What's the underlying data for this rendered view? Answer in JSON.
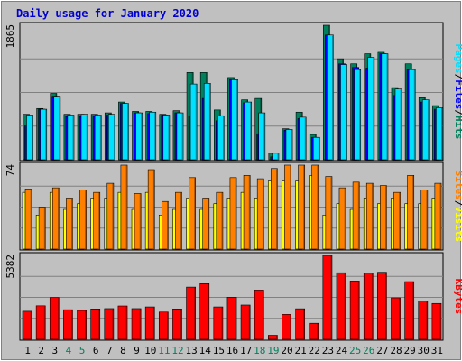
{
  "title": "Daily usage for January 2020",
  "colors": {
    "title": "#0000d0",
    "hits": "#00805c",
    "files": "#0000ff",
    "pages": "#00e0ff",
    "visits": "#ffff00",
    "sites": "#ff8000",
    "kbytes": "#ff0000",
    "weekday": "#000000",
    "weekend": "#00805c",
    "slash": "#000000"
  },
  "chart_data": [
    {
      "type": "bar",
      "panel": "top",
      "max_label": "1865",
      "ylim": [
        0,
        1865
      ],
      "series_labels": [
        "Pages",
        "Files",
        "Hits"
      ],
      "categories": [
        "1",
        "2",
        "3",
        "4",
        "5",
        "6",
        "7",
        "8",
        "9",
        "10",
        "11",
        "12",
        "13",
        "14",
        "15",
        "16",
        "17",
        "18",
        "19",
        "20",
        "21",
        "22",
        "23",
        "24",
        "25",
        "26",
        "27",
        "28",
        "29",
        "30",
        "31"
      ],
      "series": [
        {
          "name": "Hits",
          "values": [
            630,
            710,
            920,
            630,
            630,
            630,
            650,
            800,
            670,
            670,
            630,
            680,
            1210,
            1210,
            690,
            1140,
            830,
            850,
            90,
            430,
            660,
            350,
            1865,
            1400,
            1330,
            1470,
            1490,
            1000,
            1330,
            860,
            750
          ]
        },
        {
          "name": "Files",
          "values": [
            480,
            700,
            880,
            600,
            600,
            610,
            620,
            780,
            650,
            640,
            620,
            650,
            600,
            850,
            540,
            1110,
            790,
            360,
            40,
            410,
            570,
            310,
            1730,
            1330,
            1280,
            1270,
            1470,
            890,
            1250,
            800,
            700
          ]
        },
        {
          "name": "Pages",
          "values": [
            620,
            700,
            880,
            620,
            630,
            620,
            630,
            780,
            650,
            660,
            620,
            650,
            1050,
            1060,
            610,
            1110,
            800,
            650,
            90,
            420,
            590,
            310,
            1730,
            1320,
            1250,
            1420,
            1470,
            980,
            1250,
            830,
            720
          ]
        }
      ]
    },
    {
      "type": "bar",
      "panel": "middle",
      "max_label": "74",
      "ylim": [
        0,
        74
      ],
      "series_labels": [
        "Sites",
        "Visits"
      ],
      "categories": [
        "1",
        "2",
        "3",
        "4",
        "5",
        "6",
        "7",
        "8",
        "9",
        "10",
        "11",
        "12",
        "13",
        "14",
        "15",
        "16",
        "17",
        "18",
        "19",
        "20",
        "21",
        "22",
        "23",
        "24",
        "25",
        "26",
        "27",
        "28",
        "29",
        "30",
        "31"
      ],
      "series": [
        {
          "name": "Visits",
          "values": [
            50,
            30,
            50,
            35,
            40,
            45,
            45,
            50,
            35,
            50,
            30,
            35,
            45,
            35,
            40,
            45,
            50,
            45,
            60,
            60,
            60,
            65,
            30,
            40,
            35,
            45,
            40,
            45,
            40,
            40,
            45
          ]
        },
        {
          "name": "Sites",
          "values": [
            53,
            37,
            54,
            45,
            52,
            50,
            58,
            74,
            49,
            70,
            42,
            50,
            63,
            45,
            50,
            63,
            65,
            62,
            71,
            74,
            74,
            74,
            64,
            54,
            59,
            58,
            56,
            50,
            65,
            52,
            58
          ]
        }
      ]
    },
    {
      "type": "bar",
      "panel": "bottom",
      "max_label": "5382",
      "ylim": [
        0,
        5382
      ],
      "series_labels": [
        "KBytes"
      ],
      "categories": [
        "1",
        "2",
        "3",
        "4",
        "5",
        "6",
        "7",
        "8",
        "9",
        "10",
        "11",
        "12",
        "13",
        "14",
        "15",
        "16",
        "17",
        "18",
        "19",
        "20",
        "21",
        "22",
        "23",
        "24",
        "25",
        "26",
        "27",
        "28",
        "29",
        "30",
        "31"
      ],
      "series": [
        {
          "name": "KBytes",
          "values": [
            1800,
            2150,
            2680,
            1900,
            1850,
            1950,
            1970,
            2140,
            1970,
            2080,
            1750,
            1950,
            3350,
            3570,
            2080,
            2700,
            2200,
            3160,
            260,
            1600,
            1960,
            1030,
            5382,
            4270,
            3740,
            4240,
            4300,
            2660,
            3700,
            2460,
            2300
          ]
        }
      ]
    }
  ],
  "weekend_days": [
    "4",
    "5",
    "11",
    "12",
    "18",
    "19",
    "25",
    "26"
  ]
}
